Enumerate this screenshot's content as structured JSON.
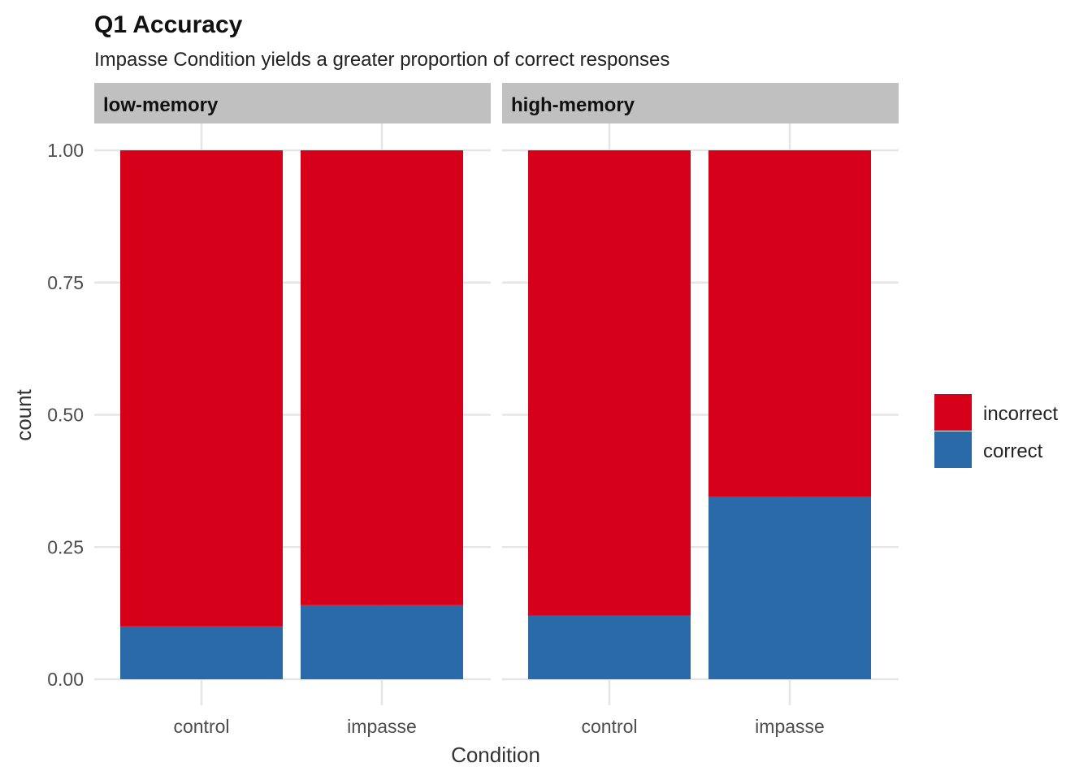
{
  "chart_data": {
    "type": "bar",
    "stacked": true,
    "title": "Q1 Accuracy",
    "subtitle": "Impasse Condition yields a greater proportion of correct responses",
    "xlabel": "Condition",
    "ylabel": "count",
    "ylim": [
      0,
      1
    ],
    "yticks": [
      "0.00",
      "0.25",
      "0.50",
      "0.75",
      "1.00"
    ],
    "categories": [
      "control",
      "impasse"
    ],
    "facets": [
      {
        "label": "low-memory",
        "series": [
          {
            "name": "correct",
            "values": [
              0.1,
              0.14
            ]
          },
          {
            "name": "incorrect",
            "values": [
              0.9,
              0.86
            ]
          }
        ]
      },
      {
        "label": "high-memory",
        "series": [
          {
            "name": "correct",
            "values": [
              0.12,
              0.345
            ]
          },
          {
            "name": "incorrect",
            "values": [
              0.88,
              0.655
            ]
          }
        ]
      }
    ],
    "legend": {
      "position": "right",
      "entries": [
        {
          "name": "incorrect",
          "color": "#d7001a"
        },
        {
          "name": "correct",
          "color": "#2b6aa8"
        }
      ]
    },
    "colors": {
      "incorrect": "#d7001a",
      "correct": "#2b6aa8",
      "strip": "#c0c0c0",
      "grid": "#e5e5e5"
    },
    "grid": true
  }
}
